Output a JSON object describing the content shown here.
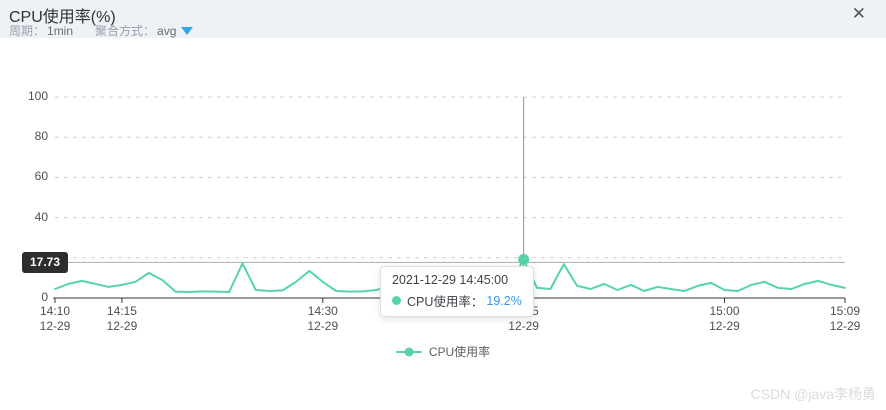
{
  "header": {
    "title": "CPU使用率(%)",
    "period_label": "周期：",
    "period_value": "1min",
    "aggregation_label": "聚合方式：",
    "aggregation_value": "avg",
    "close_icon": "✕"
  },
  "colors": {
    "series_teal": "#57d3ac",
    "value_blue": "#3a97e8",
    "caret_blue": "#35a5e6",
    "header_bg": "#eef2f7",
    "badge_bg": "#2d2d2d",
    "grid_gray": "#cfd0d2"
  },
  "chart_data": {
    "type": "line",
    "title": "CPU使用率(%)",
    "xlabel": "",
    "ylabel": "",
    "ylim": [
      0,
      100
    ],
    "yticks": [
      0,
      20,
      40,
      60,
      80,
      100
    ],
    "grid": "horizontal-dashed",
    "legend_position": "bottom-center",
    "x": [
      "14:10",
      "14:11",
      "14:12",
      "14:13",
      "14:14",
      "14:15",
      "14:16",
      "14:17",
      "14:18",
      "14:19",
      "14:20",
      "14:21",
      "14:22",
      "14:23",
      "14:24",
      "14:25",
      "14:26",
      "14:27",
      "14:28",
      "14:29",
      "14:30",
      "14:31",
      "14:32",
      "14:33",
      "14:34",
      "14:35",
      "14:36",
      "14:37",
      "14:38",
      "14:39",
      "14:40",
      "14:41",
      "14:42",
      "14:43",
      "14:44",
      "14:45",
      "14:46",
      "14:47",
      "14:48",
      "14:49",
      "14:50",
      "14:51",
      "14:52",
      "14:53",
      "14:54",
      "14:55",
      "14:56",
      "14:57",
      "14:58",
      "14:59",
      "15:00",
      "15:01",
      "15:02",
      "15:03",
      "15:04",
      "15:05",
      "15:06",
      "15:07",
      "15:08",
      "15:09"
    ],
    "x_ticks": [
      {
        "label": "14:10",
        "date": "12-29",
        "index": 0
      },
      {
        "label": "14:15",
        "date": "12-29",
        "index": 5
      },
      {
        "label": "14:30",
        "date": "12-29",
        "index": 20
      },
      {
        "label": "14:45",
        "date": "12-29",
        "index": 35
      },
      {
        "label": "15:00",
        "date": "12-29",
        "index": 50
      },
      {
        "label": "15:09",
        "date": "12-29",
        "index": 59
      }
    ],
    "series": [
      {
        "name": "CPU使用率",
        "color": "#57d3ac",
        "values": [
          4.5,
          7,
          8.5,
          7,
          5.5,
          6.5,
          8,
          12.5,
          9,
          3.2,
          3,
          3.3,
          3.2,
          3,
          17.2,
          4,
          3.5,
          3.8,
          8,
          13.5,
          8,
          3.5,
          3.2,
          3.3,
          4,
          6,
          5,
          7,
          4.5,
          3.5,
          5,
          6.5,
          4,
          5.5,
          7,
          19.2,
          5,
          4.5,
          16.8,
          6,
          4.5,
          7,
          4,
          6.5,
          3.5,
          5.5,
          4.5,
          3.5,
          6,
          7.5,
          4,
          3.5,
          6.5,
          8,
          5,
          4.5,
          7,
          8.5,
          6.5,
          5
        ]
      }
    ],
    "axis_pointer": {
      "y_value": 17.73,
      "y_label": "17.73",
      "x_index": 35
    },
    "highlight_point": {
      "x_index": 35,
      "datetime": "2021-12-29 14:45:00",
      "value": 19.2
    }
  },
  "tooltip": {
    "datetime": "2021-12-29 14:45:00",
    "series_label": "CPU使用率：",
    "value_text": "19.2%"
  },
  "legend": {
    "label": "CPU使用率"
  },
  "watermark": "CSDN @java李杨勇"
}
